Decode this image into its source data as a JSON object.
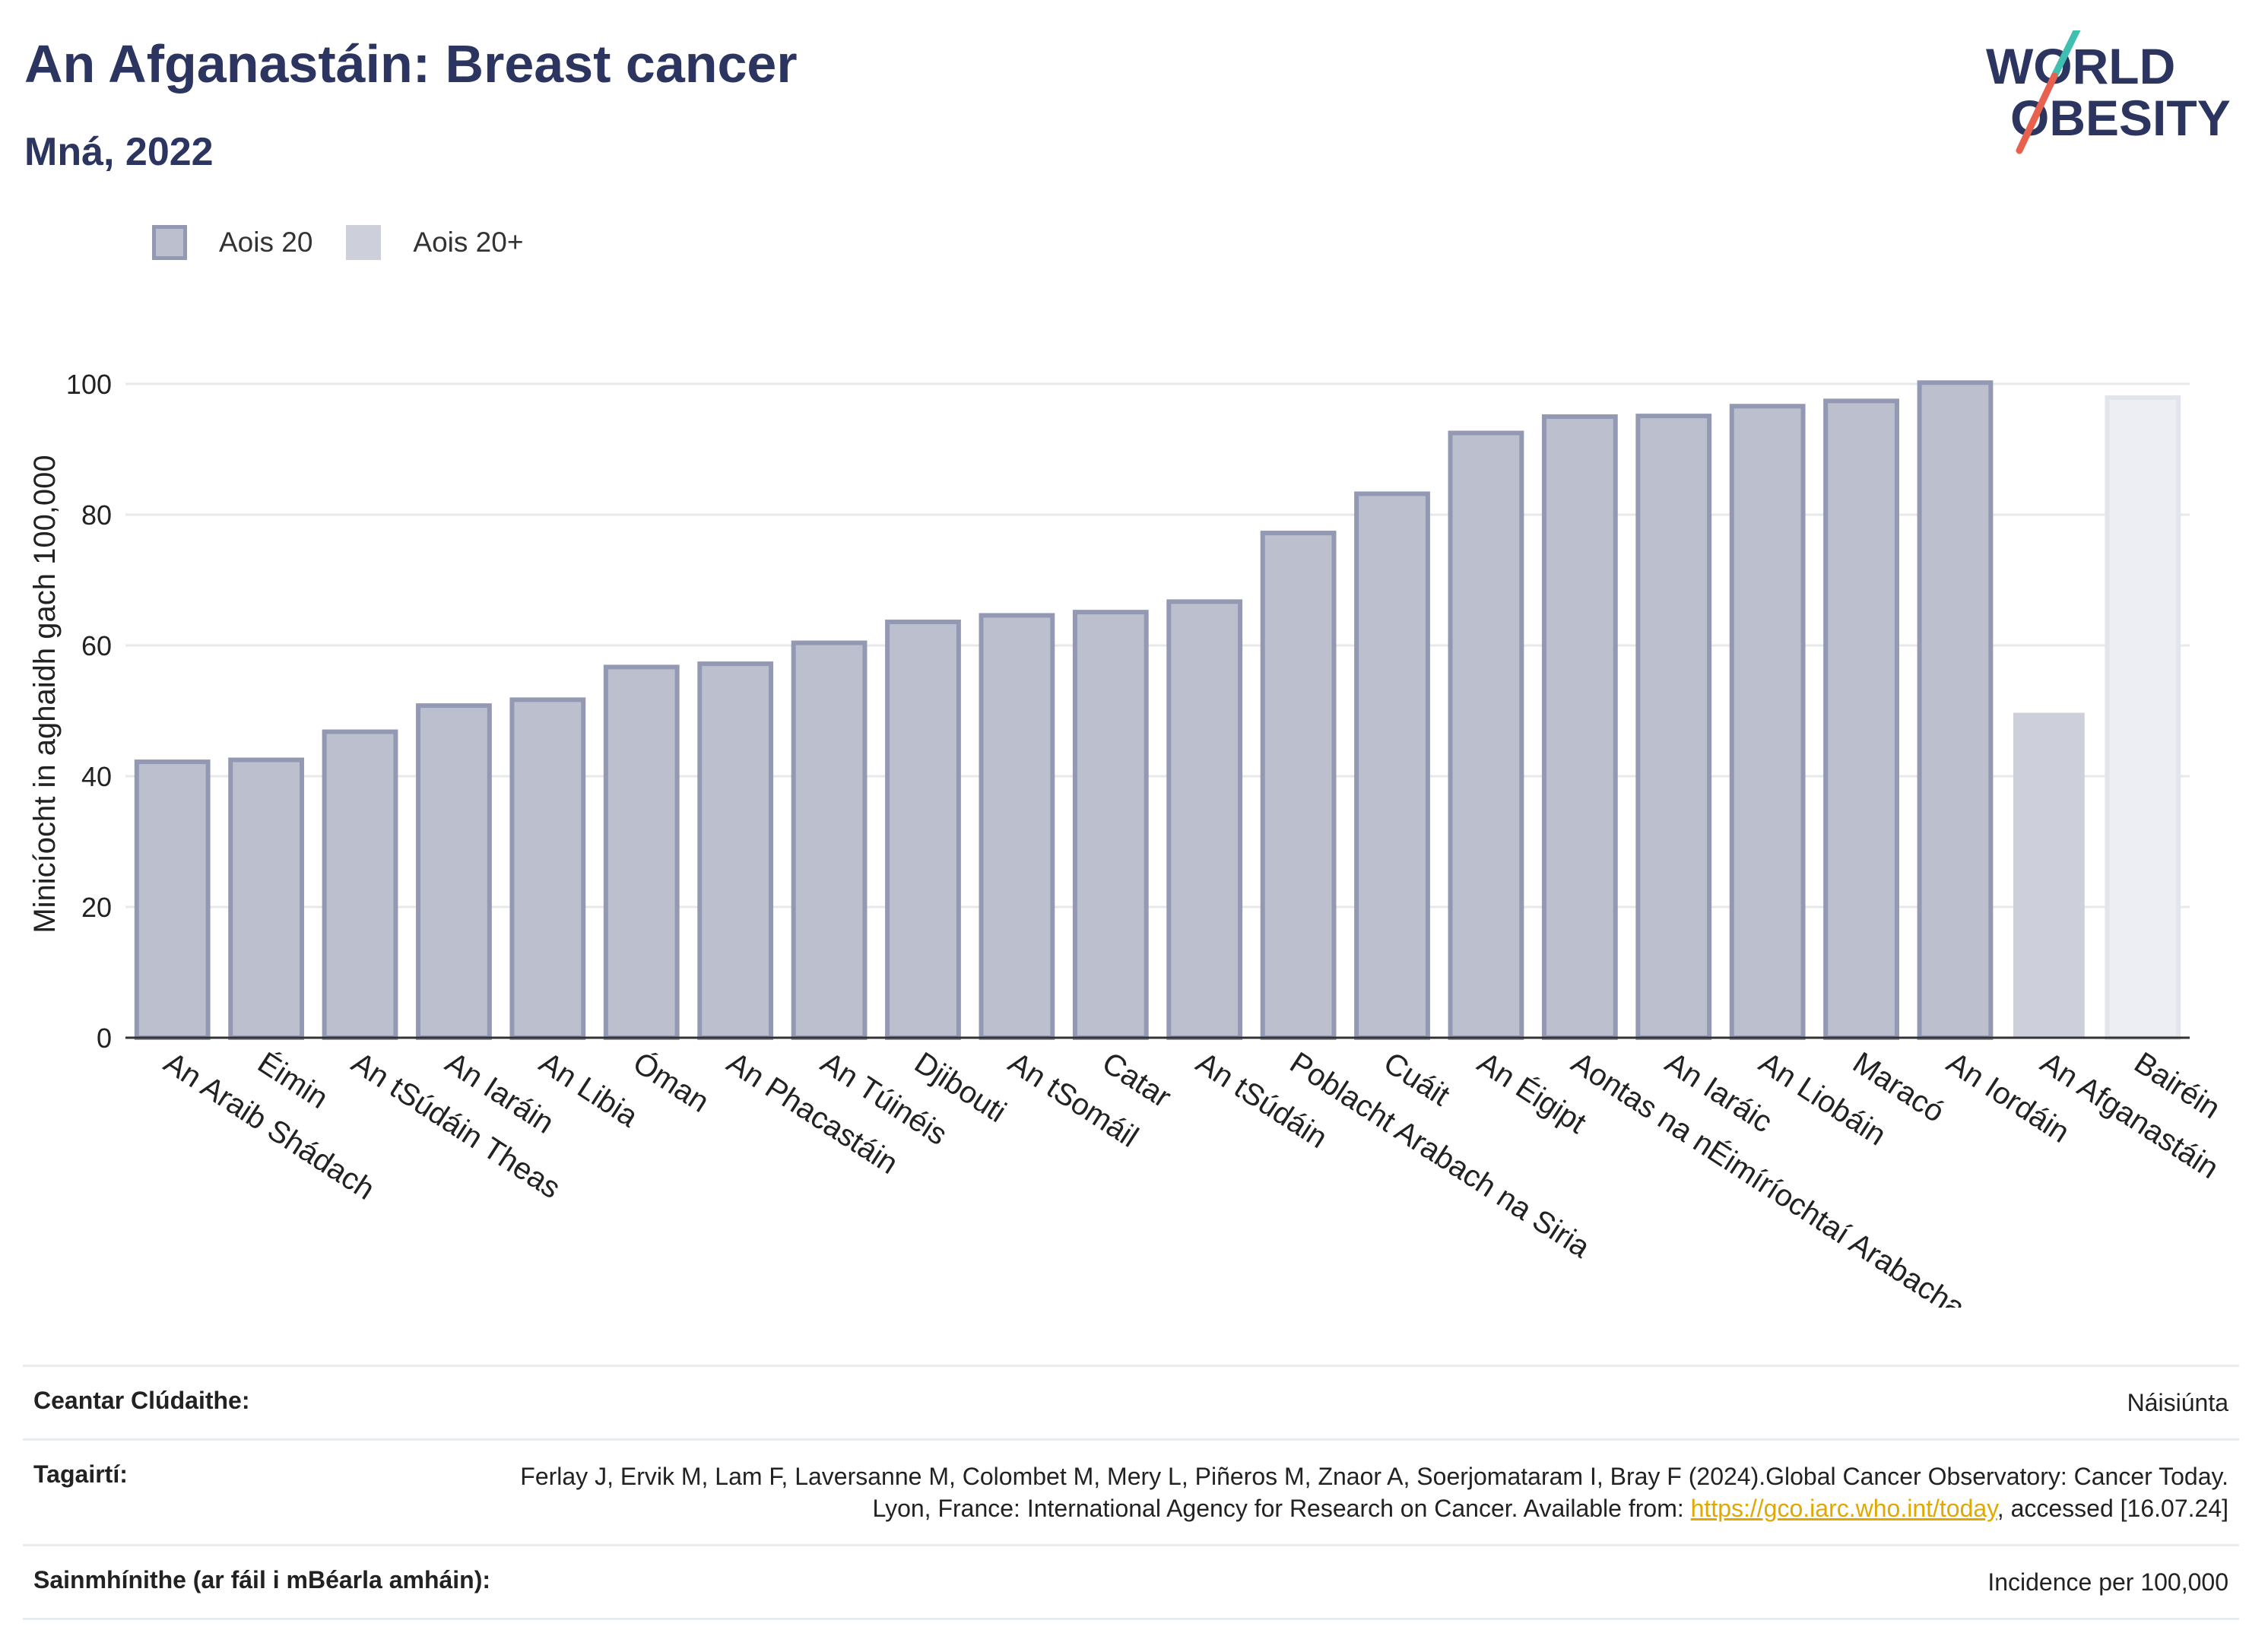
{
  "header": {
    "title": "An Afganastáin: Breast cancer",
    "subtitle": "Mná, 2022"
  },
  "logo": {
    "line1": "WORLD",
    "line2": "OBESITY"
  },
  "legend": [
    {
      "label": "Aois 20"
    },
    {
      "label": "Aois 20+"
    }
  ],
  "chart_data": {
    "type": "bar",
    "ylabel": "Minicíocht in aghaidh gach 100,000",
    "xlabel": "",
    "ylim": [
      0,
      100
    ],
    "yticks": [
      0,
      20,
      40,
      60,
      80,
      100
    ],
    "grid": true,
    "legend_position": "top-left",
    "categories": [
      "An Araib Shádach",
      "Éimin",
      "An tSúdáin Theas",
      "An Iaráin",
      "An Libia",
      "Óman",
      "An Phacastáin",
      "An Túinéis",
      "Djibouti",
      "An tSomáil",
      "Catar",
      "An tSúdáin",
      "Poblacht Arabach na Siria",
      "Cuáit",
      "An Éigipt",
      "Aontas na nÉimíríochtaí Arabacha",
      "An Iaráic",
      "An Liobáin",
      "Maracó",
      "An Iordáin",
      "An Afganastáin",
      "Bairéin"
    ],
    "series": [
      {
        "name": "Aois 20",
        "values": [
          42.2,
          42.5,
          46.8,
          50.8,
          51.7,
          56.7,
          57.2,
          60.4,
          63.6,
          64.6,
          65.1,
          66.7,
          77.2,
          83.2,
          92.5,
          95.0,
          95.1,
          96.6,
          97.4,
          100.2,
          null,
          null
        ]
      },
      {
        "name": "Aois 20+",
        "values": [
          null,
          null,
          null,
          null,
          null,
          null,
          null,
          null,
          null,
          null,
          null,
          null,
          null,
          null,
          null,
          null,
          null,
          null,
          null,
          null,
          49.7,
          97.9
        ]
      }
    ]
  },
  "footer": {
    "coverage_label": "Ceantar Clúdaithe:",
    "coverage_value": "Náisiúnta",
    "references_label": "Tagairtí:",
    "references_text1": "Ferlay J, Ervik M, Lam F, Laversanne M, Colombet M, Mery L, Piñeros M, Znaor A, Soerjomataram I, Bray F (2024).Global Cancer Observatory: Cancer Today. Lyon, France: International Agency for Research on Cancer. Available from: ",
    "references_link": "https://gco.iarc.who.int/today",
    "references_text2": ", accessed [16.07.24]",
    "definitions_label": "Sainmhínithe (ar fáil i mBéarla amháin):",
    "definitions_value": "Incidence per 100,000"
  },
  "colors": {
    "bar_fill": "#bcbfcd",
    "bar_stroke": "#9399b2",
    "highlight_fill": "#cdd0db",
    "highlight_fill_light": "#eceef3",
    "title": "#2b3560",
    "logo_teal": "#3fbfb0",
    "logo_red": "#e8614f"
  }
}
